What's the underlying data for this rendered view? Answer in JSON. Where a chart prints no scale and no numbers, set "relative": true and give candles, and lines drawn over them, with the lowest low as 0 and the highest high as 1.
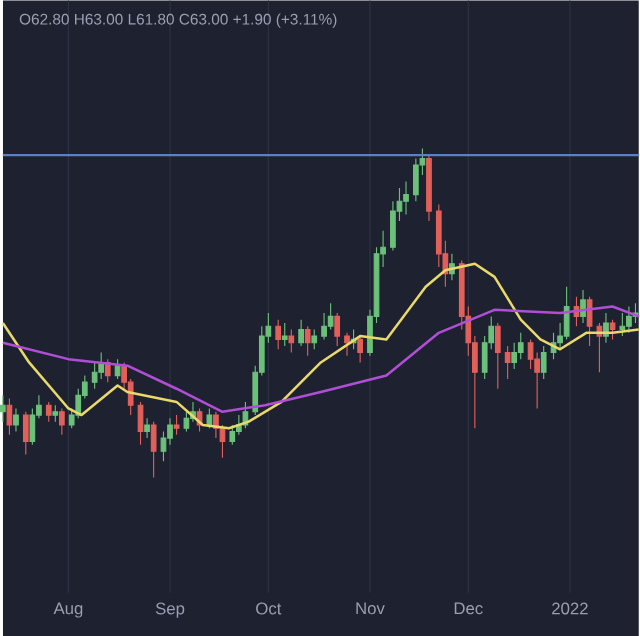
{
  "chart_data": {
    "type": "candlestick",
    "relative": true,
    "grid": true,
    "marker": "none",
    "line_style": "solid",
    "annotations": [
      "O62.80 H63.00 L61.80 C63.00 +1.90 (+3.11%)"
    ],
    "xlim": [
      "2021-07-12",
      "2022-01-22"
    ],
    "xticks": [
      {
        "value": "2021-08-01",
        "label": "Aug"
      },
      {
        "value": "2021-09-01",
        "label": "Sep"
      },
      {
        "value": "2021-10-01",
        "label": "Oct"
      },
      {
        "value": "2021-11-01",
        "label": "Nov"
      },
      {
        "value": "2021-12-01",
        "label": "Dec"
      },
      {
        "value": "2022-01-01",
        "label": "2022"
      }
    ],
    "x": [
      "2021-07-12",
      "2021-07-14",
      "2021-07-16",
      "2021-07-19",
      "2021-07-21",
      "2021-07-23",
      "2021-07-26",
      "2021-07-28",
      "2021-07-30",
      "2021-08-02",
      "2021-08-04",
      "2021-08-06",
      "2021-08-09",
      "2021-08-11",
      "2021-08-13",
      "2021-08-16",
      "2021-08-18",
      "2021-08-20",
      "2021-08-23",
      "2021-08-25",
      "2021-08-27",
      "2021-08-30",
      "2021-09-01",
      "2021-09-03",
      "2021-09-06",
      "2021-09-08",
      "2021-09-10",
      "2021-09-13",
      "2021-09-15",
      "2021-09-17",
      "2021-09-20",
      "2021-09-22",
      "2021-09-24",
      "2021-09-27",
      "2021-09-29",
      "2021-10-01",
      "2021-10-04",
      "2021-10-06",
      "2021-10-08",
      "2021-10-11",
      "2021-10-13",
      "2021-10-15",
      "2021-10-18",
      "2021-10-20",
      "2021-10-22",
      "2021-10-25",
      "2021-10-27",
      "2021-10-29",
      "2021-11-01",
      "2021-11-03",
      "2021-11-05",
      "2021-11-08",
      "2021-11-10",
      "2021-11-12",
      "2021-11-15",
      "2021-11-17",
      "2021-11-19",
      "2021-11-22",
      "2021-11-24",
      "2021-11-26",
      "2021-11-29",
      "2021-12-01",
      "2021-12-03",
      "2021-12-06",
      "2021-12-08",
      "2021-12-10",
      "2021-12-13",
      "2021-12-15",
      "2021-12-17",
      "2021-12-20",
      "2021-12-22",
      "2021-12-24",
      "2021-12-27",
      "2021-12-29",
      "2021-12-31",
      "2022-01-03",
      "2022-01-05",
      "2022-01-07",
      "2022-01-10",
      "2022-01-12",
      "2022-01-14",
      "2022-01-17",
      "2022-01-19",
      "2022-01-21"
    ],
    "ohlc": [
      [
        0.2,
        0.25,
        0.17,
        0.22
      ],
      [
        0.22,
        0.24,
        0.13,
        0.16
      ],
      [
        0.16,
        0.21,
        0.14,
        0.19
      ],
      [
        0.19,
        0.2,
        0.07,
        0.11
      ],
      [
        0.11,
        0.21,
        0.1,
        0.19
      ],
      [
        0.19,
        0.25,
        0.18,
        0.22
      ],
      [
        0.22,
        0.23,
        0.17,
        0.19
      ],
      [
        0.19,
        0.22,
        0.17,
        0.2
      ],
      [
        0.2,
        0.21,
        0.13,
        0.16
      ],
      [
        0.16,
        0.21,
        0.15,
        0.19
      ],
      [
        0.19,
        0.27,
        0.18,
        0.25
      ],
      [
        0.25,
        0.31,
        0.24,
        0.29
      ],
      [
        0.29,
        0.35,
        0.27,
        0.32
      ],
      [
        0.32,
        0.38,
        0.3,
        0.35
      ],
      [
        0.35,
        0.36,
        0.29,
        0.31
      ],
      [
        0.31,
        0.36,
        0.3,
        0.34
      ],
      [
        0.34,
        0.35,
        0.27,
        0.29
      ],
      [
        0.29,
        0.3,
        0.19,
        0.22
      ],
      [
        0.22,
        0.23,
        0.1,
        0.14
      ],
      [
        0.14,
        0.18,
        0.12,
        0.16
      ],
      [
        0.16,
        0.17,
        0.0,
        0.08
      ],
      [
        0.08,
        0.14,
        0.05,
        0.12
      ],
      [
        0.12,
        0.18,
        0.1,
        0.16
      ],
      [
        0.16,
        0.19,
        0.13,
        0.15
      ],
      [
        0.15,
        0.2,
        0.14,
        0.18
      ],
      [
        0.18,
        0.23,
        0.17,
        0.2
      ],
      [
        0.2,
        0.21,
        0.14,
        0.16
      ],
      [
        0.16,
        0.21,
        0.15,
        0.19
      ],
      [
        0.19,
        0.2,
        0.12,
        0.15
      ],
      [
        0.15,
        0.16,
        0.06,
        0.11
      ],
      [
        0.11,
        0.16,
        0.1,
        0.14
      ],
      [
        0.14,
        0.19,
        0.13,
        0.16
      ],
      [
        0.16,
        0.23,
        0.15,
        0.2
      ],
      [
        0.2,
        0.34,
        0.19,
        0.32
      ],
      [
        0.32,
        0.46,
        0.31,
        0.43
      ],
      [
        0.43,
        0.5,
        0.41,
        0.46
      ],
      [
        0.46,
        0.48,
        0.39,
        0.42
      ],
      [
        0.42,
        0.47,
        0.4,
        0.43
      ],
      [
        0.43,
        0.45,
        0.38,
        0.41
      ],
      [
        0.41,
        0.48,
        0.4,
        0.45
      ],
      [
        0.45,
        0.46,
        0.37,
        0.41
      ],
      [
        0.41,
        0.45,
        0.39,
        0.43
      ],
      [
        0.43,
        0.5,
        0.42,
        0.46
      ],
      [
        0.46,
        0.53,
        0.45,
        0.49
      ],
      [
        0.49,
        0.5,
        0.4,
        0.43
      ],
      [
        0.43,
        0.44,
        0.37,
        0.41
      ],
      [
        0.41,
        0.45,
        0.39,
        0.42
      ],
      [
        0.42,
        0.43,
        0.35,
        0.38
      ],
      [
        0.38,
        0.51,
        0.37,
        0.49
      ],
      [
        0.49,
        0.7,
        0.47,
        0.68
      ],
      [
        0.68,
        0.75,
        0.64,
        0.7
      ],
      [
        0.7,
        0.84,
        0.69,
        0.81
      ],
      [
        0.81,
        0.88,
        0.78,
        0.84
      ],
      [
        0.84,
        0.9,
        0.8,
        0.86
      ],
      [
        0.86,
        0.97,
        0.84,
        0.95
      ],
      [
        0.95,
        1.0,
        0.92,
        0.97
      ],
      [
        0.97,
        0.98,
        0.78,
        0.81
      ],
      [
        0.81,
        0.83,
        0.64,
        0.68
      ],
      [
        0.68,
        0.72,
        0.58,
        0.62
      ],
      [
        0.62,
        0.68,
        0.6,
        0.65
      ],
      [
        0.65,
        0.66,
        0.45,
        0.49
      ],
      [
        0.49,
        0.52,
        0.37,
        0.41
      ],
      [
        0.41,
        0.43,
        0.15,
        0.32
      ],
      [
        0.32,
        0.43,
        0.3,
        0.41
      ],
      [
        0.41,
        0.49,
        0.39,
        0.46
      ],
      [
        0.46,
        0.47,
        0.27,
        0.38
      ],
      [
        0.38,
        0.4,
        0.3,
        0.35
      ],
      [
        0.35,
        0.41,
        0.33,
        0.38
      ],
      [
        0.38,
        0.44,
        0.36,
        0.41
      ],
      [
        0.41,
        0.42,
        0.33,
        0.36
      ],
      [
        0.36,
        0.38,
        0.21,
        0.32
      ],
      [
        0.32,
        0.4,
        0.3,
        0.38
      ],
      [
        0.38,
        0.44,
        0.36,
        0.41
      ],
      [
        0.41,
        0.47,
        0.39,
        0.43
      ],
      [
        0.43,
        0.58,
        0.42,
        0.52
      ],
      [
        0.52,
        0.55,
        0.46,
        0.49
      ],
      [
        0.49,
        0.57,
        0.47,
        0.54
      ],
      [
        0.54,
        0.55,
        0.4,
        0.46
      ],
      [
        0.46,
        0.47,
        0.32,
        0.43
      ],
      [
        0.43,
        0.5,
        0.41,
        0.47
      ],
      [
        0.47,
        0.48,
        0.42,
        0.45
      ],
      [
        0.45,
        0.5,
        0.43,
        0.46
      ],
      [
        0.46,
        0.52,
        0.44,
        0.49
      ],
      [
        0.49,
        0.53,
        0.47,
        0.5
      ]
    ],
    "colors": [
      "#6cc17a",
      "#e2605a",
      "#6cc17a",
      "#e2605a",
      "#6cc17a",
      "#6cc17a",
      "#e2605a",
      "#6cc17a",
      "#e2605a",
      "#6cc17a",
      "#6cc17a",
      "#6cc17a",
      "#6cc17a",
      "#6cc17a",
      "#e2605a",
      "#6cc17a",
      "#e2605a",
      "#e2605a",
      "#e2605a",
      "#6cc17a",
      "#e2605a",
      "#6cc17a",
      "#6cc17a",
      "#e2605a",
      "#6cc17a",
      "#6cc17a",
      "#e2605a",
      "#6cc17a",
      "#e2605a",
      "#e2605a",
      "#6cc17a",
      "#6cc17a",
      "#6cc17a",
      "#6cc17a",
      "#6cc17a",
      "#6cc17a",
      "#e2605a",
      "#6cc17a",
      "#e2605a",
      "#6cc17a",
      "#e2605a",
      "#6cc17a",
      "#6cc17a",
      "#6cc17a",
      "#e2605a",
      "#e2605a",
      "#6cc17a",
      "#e2605a",
      "#6cc17a",
      "#6cc17a",
      "#6cc17a",
      "#6cc17a",
      "#6cc17a",
      "#6cc17a",
      "#6cc17a",
      "#6cc17a",
      "#e2605a",
      "#e2605a",
      "#e2605a",
      "#6cc17a",
      "#e2605a",
      "#e2605a",
      "#e2605a",
      "#6cc17a",
      "#6cc17a",
      "#e2605a",
      "#e2605a",
      "#6cc17a",
      "#6cc17a",
      "#e2605a",
      "#e2605a",
      "#6cc17a",
      "#6cc17a",
      "#6cc17a",
      "#6cc17a",
      "#e2605a",
      "#6cc17a",
      "#e2605a",
      "#e2605a",
      "#6cc17a",
      "#e2605a",
      "#6cc17a",
      "#6cc17a",
      "#6cc17a"
    ],
    "series": [
      {
        "type": "line",
        "color": "#e8d96a",
        "x": [
          "2021-07-12",
          "2021-07-20",
          "2021-08-01",
          "2021-08-05",
          "2021-08-16",
          "2021-08-19",
          "2021-09-03",
          "2021-09-11",
          "2021-09-19",
          "2021-09-25",
          "2021-10-05",
          "2021-10-17",
          "2021-10-29",
          "2021-11-06",
          "2021-11-18",
          "2021-11-24",
          "2021-12-03",
          "2021-12-09",
          "2021-12-17",
          "2021-12-23",
          "2021-12-29",
          "2022-01-06",
          "2022-01-14",
          "2022-01-22"
        ],
        "values": [
          0.47,
          0.35,
          0.21,
          0.19,
          0.28,
          0.26,
          0.23,
          0.16,
          0.15,
          0.17,
          0.23,
          0.35,
          0.43,
          0.42,
          0.58,
          0.63,
          0.65,
          0.61,
          0.48,
          0.42,
          0.39,
          0.44,
          0.44,
          0.45
        ]
      },
      {
        "type": "line",
        "color": "#b04fd6",
        "x": [
          "2021-07-12",
          "2021-08-01",
          "2021-08-19",
          "2021-09-03",
          "2021-09-17",
          "2021-09-30",
          "2021-10-17",
          "2021-11-06",
          "2021-11-22",
          "2021-12-09",
          "2021-12-29",
          "2022-01-14",
          "2022-01-22"
        ],
        "values": [
          0.41,
          0.36,
          0.34,
          0.27,
          0.2,
          0.22,
          0.26,
          0.31,
          0.44,
          0.51,
          0.5,
          0.52,
          0.49
        ]
      }
    ],
    "ref_lines": [
      {
        "axis": "y",
        "value": 0.98,
        "color": "#5d7fc4"
      }
    ]
  }
}
